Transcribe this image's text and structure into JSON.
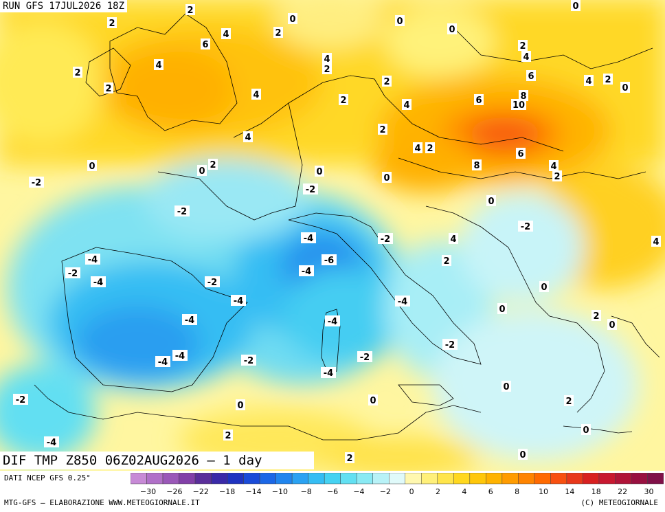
{
  "header": {
    "run_label": "RUN GFS 17JUL2026 18Z"
  },
  "map": {
    "title": "DIF TMP Z850 06Z02AUG2026 — 1 day",
    "labels": [
      {
        "text": "2",
        "pos": [
          277,
          14
        ]
      },
      {
        "text": "0",
        "pos": [
          426,
          27
        ]
      },
      {
        "text": "0",
        "pos": [
          582,
          30
        ]
      },
      {
        "text": "0",
        "pos": [
          838,
          8
        ]
      },
      {
        "text": "2",
        "pos": [
          163,
          33
        ]
      },
      {
        "text": "4",
        "pos": [
          329,
          49
        ]
      },
      {
        "text": "2",
        "pos": [
          405,
          47
        ]
      },
      {
        "text": "0",
        "pos": [
          658,
          42
        ]
      },
      {
        "text": "6",
        "pos": [
          299,
          64
        ]
      },
      {
        "text": "2",
        "pos": [
          761,
          66
        ]
      },
      {
        "text": "4",
        "pos": [
          766,
          82
        ]
      },
      {
        "text": "4",
        "pos": [
          231,
          94
        ]
      },
      {
        "text": "4",
        "pos": [
          476,
          85
        ]
      },
      {
        "text": "2",
        "pos": [
          113,
          105
        ]
      },
      {
        "text": "2",
        "pos": [
          476,
          100
        ]
      },
      {
        "text": "6",
        "pos": [
          773,
          110
        ]
      },
      {
        "text": "4",
        "pos": [
          857,
          117
        ]
      },
      {
        "text": "2",
        "pos": [
          885,
          115
        ]
      },
      {
        "text": "0",
        "pos": [
          910,
          127
        ]
      },
      {
        "text": "2",
        "pos": [
          158,
          128
        ]
      },
      {
        "text": "4",
        "pos": [
          373,
          137
        ]
      },
      {
        "text": "2",
        "pos": [
          563,
          118
        ]
      },
      {
        "text": "8",
        "pos": [
          762,
          139
        ]
      },
      {
        "text": "2",
        "pos": [
          500,
          145
        ]
      },
      {
        "text": "4",
        "pos": [
          592,
          152
        ]
      },
      {
        "text": "6",
        "pos": [
          697,
          145
        ]
      },
      {
        "text": "10",
        "pos": [
          755,
          152
        ]
      },
      {
        "text": "2",
        "pos": [
          557,
          188
        ]
      },
      {
        "text": "4",
        "pos": [
          361,
          199
        ]
      },
      {
        "text": "4",
        "pos": [
          608,
          215
        ]
      },
      {
        "text": "2",
        "pos": [
          626,
          215
        ]
      },
      {
        "text": "6",
        "pos": [
          758,
          223
        ]
      },
      {
        "text": "0",
        "pos": [
          134,
          241
        ]
      },
      {
        "text": "0",
        "pos": [
          294,
          248
        ]
      },
      {
        "text": "2",
        "pos": [
          310,
          239
        ]
      },
      {
        "text": "8",
        "pos": [
          694,
          240
        ]
      },
      {
        "text": "4",
        "pos": [
          806,
          241
        ]
      },
      {
        "text": "0",
        "pos": [
          465,
          249
        ]
      },
      {
        "text": "2",
        "pos": [
          811,
          256
        ]
      },
      {
        "text": "0",
        "pos": [
          563,
          258
        ]
      },
      {
        "text": "-2",
        "pos": [
          53,
          265
        ]
      },
      {
        "text": "-2",
        "pos": [
          452,
          275
        ]
      },
      {
        "text": "0",
        "pos": [
          715,
          292
        ]
      },
      {
        "text": "-2",
        "pos": [
          265,
          307
        ]
      },
      {
        "text": "-2",
        "pos": [
          765,
          329
        ]
      },
      {
        "text": "-4",
        "pos": [
          449,
          346
        ]
      },
      {
        "text": "-2",
        "pos": [
          561,
          347
        ]
      },
      {
        "text": "4",
        "pos": [
          660,
          347
        ]
      },
      {
        "text": "4",
        "pos": [
          955,
          351
        ]
      },
      {
        "text": "-4",
        "pos": [
          135,
          377
        ]
      },
      {
        "text": "-6",
        "pos": [
          479,
          378
        ]
      },
      {
        "text": "2",
        "pos": [
          650,
          379
        ]
      },
      {
        "text": "-2",
        "pos": [
          106,
          397
        ]
      },
      {
        "text": "-4",
        "pos": [
          446,
          394
        ]
      },
      {
        "text": "-4",
        "pos": [
          143,
          410
        ]
      },
      {
        "text": "-2",
        "pos": [
          309,
          410
        ]
      },
      {
        "text": "0",
        "pos": [
          792,
          417
        ]
      },
      {
        "text": "-4",
        "pos": [
          347,
          437
        ]
      },
      {
        "text": "-4",
        "pos": [
          586,
          438
        ]
      },
      {
        "text": "0",
        "pos": [
          731,
          449
        ]
      },
      {
        "text": "2",
        "pos": [
          868,
          459
        ]
      },
      {
        "text": "0",
        "pos": [
          891,
          472
        ]
      },
      {
        "text": "-4",
        "pos": [
          276,
          465
        ]
      },
      {
        "text": "-4",
        "pos": [
          484,
          467
        ]
      },
      {
        "text": "-2",
        "pos": [
          655,
          501
        ]
      },
      {
        "text": "-4",
        "pos": [
          237,
          526
        ]
      },
      {
        "text": "-4",
        "pos": [
          262,
          517
        ]
      },
      {
        "text": "-2",
        "pos": [
          362,
          524
        ]
      },
      {
        "text": "-2",
        "pos": [
          531,
          519
        ]
      },
      {
        "text": "-4",
        "pos": [
          478,
          542
        ]
      },
      {
        "text": "0",
        "pos": [
          737,
          562
        ]
      },
      {
        "text": "-2",
        "pos": [
          30,
          581
        ]
      },
      {
        "text": "0",
        "pos": [
          543,
          582
        ]
      },
      {
        "text": "0",
        "pos": [
          350,
          589
        ]
      },
      {
        "text": "2",
        "pos": [
          828,
          583
        ]
      },
      {
        "text": "0",
        "pos": [
          853,
          625
        ]
      },
      {
        "text": "2",
        "pos": [
          332,
          633
        ]
      },
      {
        "text": "-4",
        "pos": [
          75,
          643
        ]
      },
      {
        "text": "2",
        "pos": [
          509,
          666
        ]
      },
      {
        "text": "0",
        "pos": [
          761,
          661
        ]
      }
    ]
  },
  "legend": {
    "colors": [
      "#c78ad6",
      "#b070c8",
      "#9a58b8",
      "#8240a8",
      "#5a2e9a",
      "#3a2aa8",
      "#1f33c0",
      "#1a4bd8",
      "#1b67e6",
      "#2085ee",
      "#2aa2f2",
      "#35bdf3",
      "#45d2f2",
      "#62e0f2",
      "#8aeaf4",
      "#b8f2f7",
      "#e0fafa",
      "#fff8b0",
      "#fff07a",
      "#ffe54a",
      "#ffd81f",
      "#ffc70a",
      "#ffb300",
      "#ff9c00",
      "#ff8400",
      "#ff6a00",
      "#f85010",
      "#e8381a",
      "#d82020",
      "#c81830",
      "#b01438",
      "#981040",
      "#801048"
    ],
    "tick_labels": [
      "−30",
      "−26",
      "−22",
      "−18",
      "−14",
      "−10",
      "−8",
      "−6",
      "−4",
      "−2",
      "0",
      "2",
      "4",
      "6",
      "8",
      "10",
      "14",
      "18",
      "22",
      "30"
    ]
  },
  "footer": {
    "source": "DATI NCEP GFS 0.25°",
    "credit": "MTG-GFS — ELABORAZIONE WWW.METEOGIORNALE.IT",
    "copyright": "(C) METEOGIORNALE"
  }
}
